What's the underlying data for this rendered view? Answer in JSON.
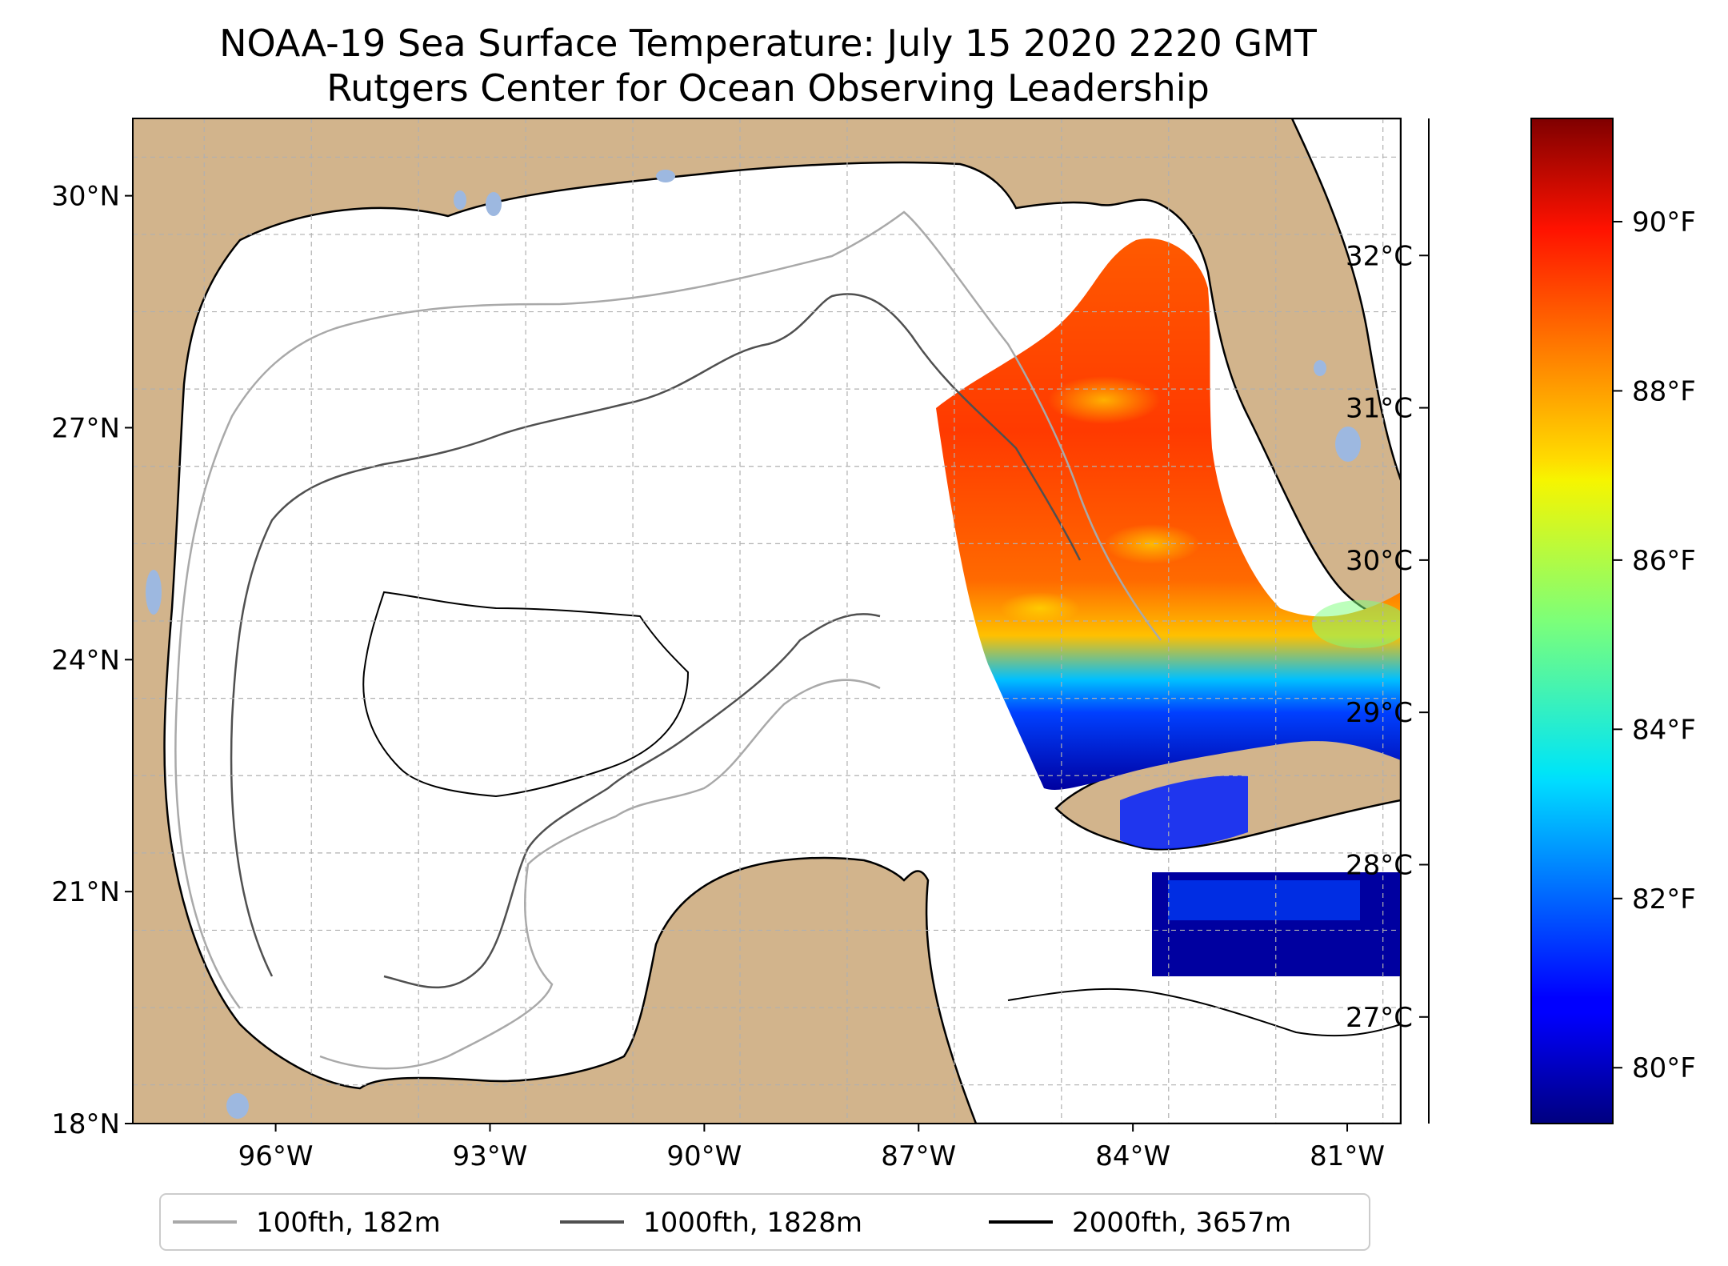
{
  "title": "NOAA-19 Sea Surface Temperature: July 15 2020 2220 GMT",
  "subtitle": "Rutgers Center for Ocean Observing Leadership",
  "map": {
    "extent": {
      "lon": [
        -98.0,
        -80.25
      ],
      "lat": [
        18.0,
        31.0
      ]
    },
    "lat_ticks": [
      {
        "value": 30,
        "label": "30°N"
      },
      {
        "value": 27,
        "label": "27°N"
      },
      {
        "value": 24,
        "label": "24°N"
      },
      {
        "value": 21,
        "label": "21°N"
      },
      {
        "value": 18,
        "label": "18°N"
      }
    ],
    "lon_ticks": [
      {
        "value": -96,
        "label": "96°W"
      },
      {
        "value": -93,
        "label": "93°W"
      },
      {
        "value": -90,
        "label": "90°W"
      },
      {
        "value": -87,
        "label": "87°W"
      },
      {
        "value": -84,
        "label": "84°W"
      },
      {
        "value": -81,
        "label": "81°W"
      }
    ],
    "colors": {
      "land": "#d2b48c",
      "ocean": "#ffffff",
      "lake": "#9db8e0",
      "grid": "#b0b0b0"
    }
  },
  "colorbar": {
    "colormap": "jet",
    "range_celsius": [
      26.3,
      32.9
    ],
    "celsius_ticks": [
      {
        "value": 27,
        "label": "27°C"
      },
      {
        "value": 28,
        "label": "28°C"
      },
      {
        "value": 29,
        "label": "29°C"
      },
      {
        "value": 30,
        "label": "30°C"
      },
      {
        "value": 31,
        "label": "31°C"
      },
      {
        "value": 32,
        "label": "32°C"
      }
    ],
    "fahrenheit_ticks": [
      {
        "value": 80,
        "label": "80°F"
      },
      {
        "value": 82,
        "label": "82°F"
      },
      {
        "value": 84,
        "label": "84°F"
      },
      {
        "value": 86,
        "label": "86°F"
      },
      {
        "value": 88,
        "label": "88°F"
      },
      {
        "value": 90,
        "label": "90°F"
      }
    ]
  },
  "legend": [
    {
      "label": "100fth, 182m",
      "color": "#a9a9a9"
    },
    {
      "label": "1000fth, 1828m",
      "color": "#505050"
    },
    {
      "label": "2000fth, 3657m",
      "color": "#000000"
    }
  ]
}
